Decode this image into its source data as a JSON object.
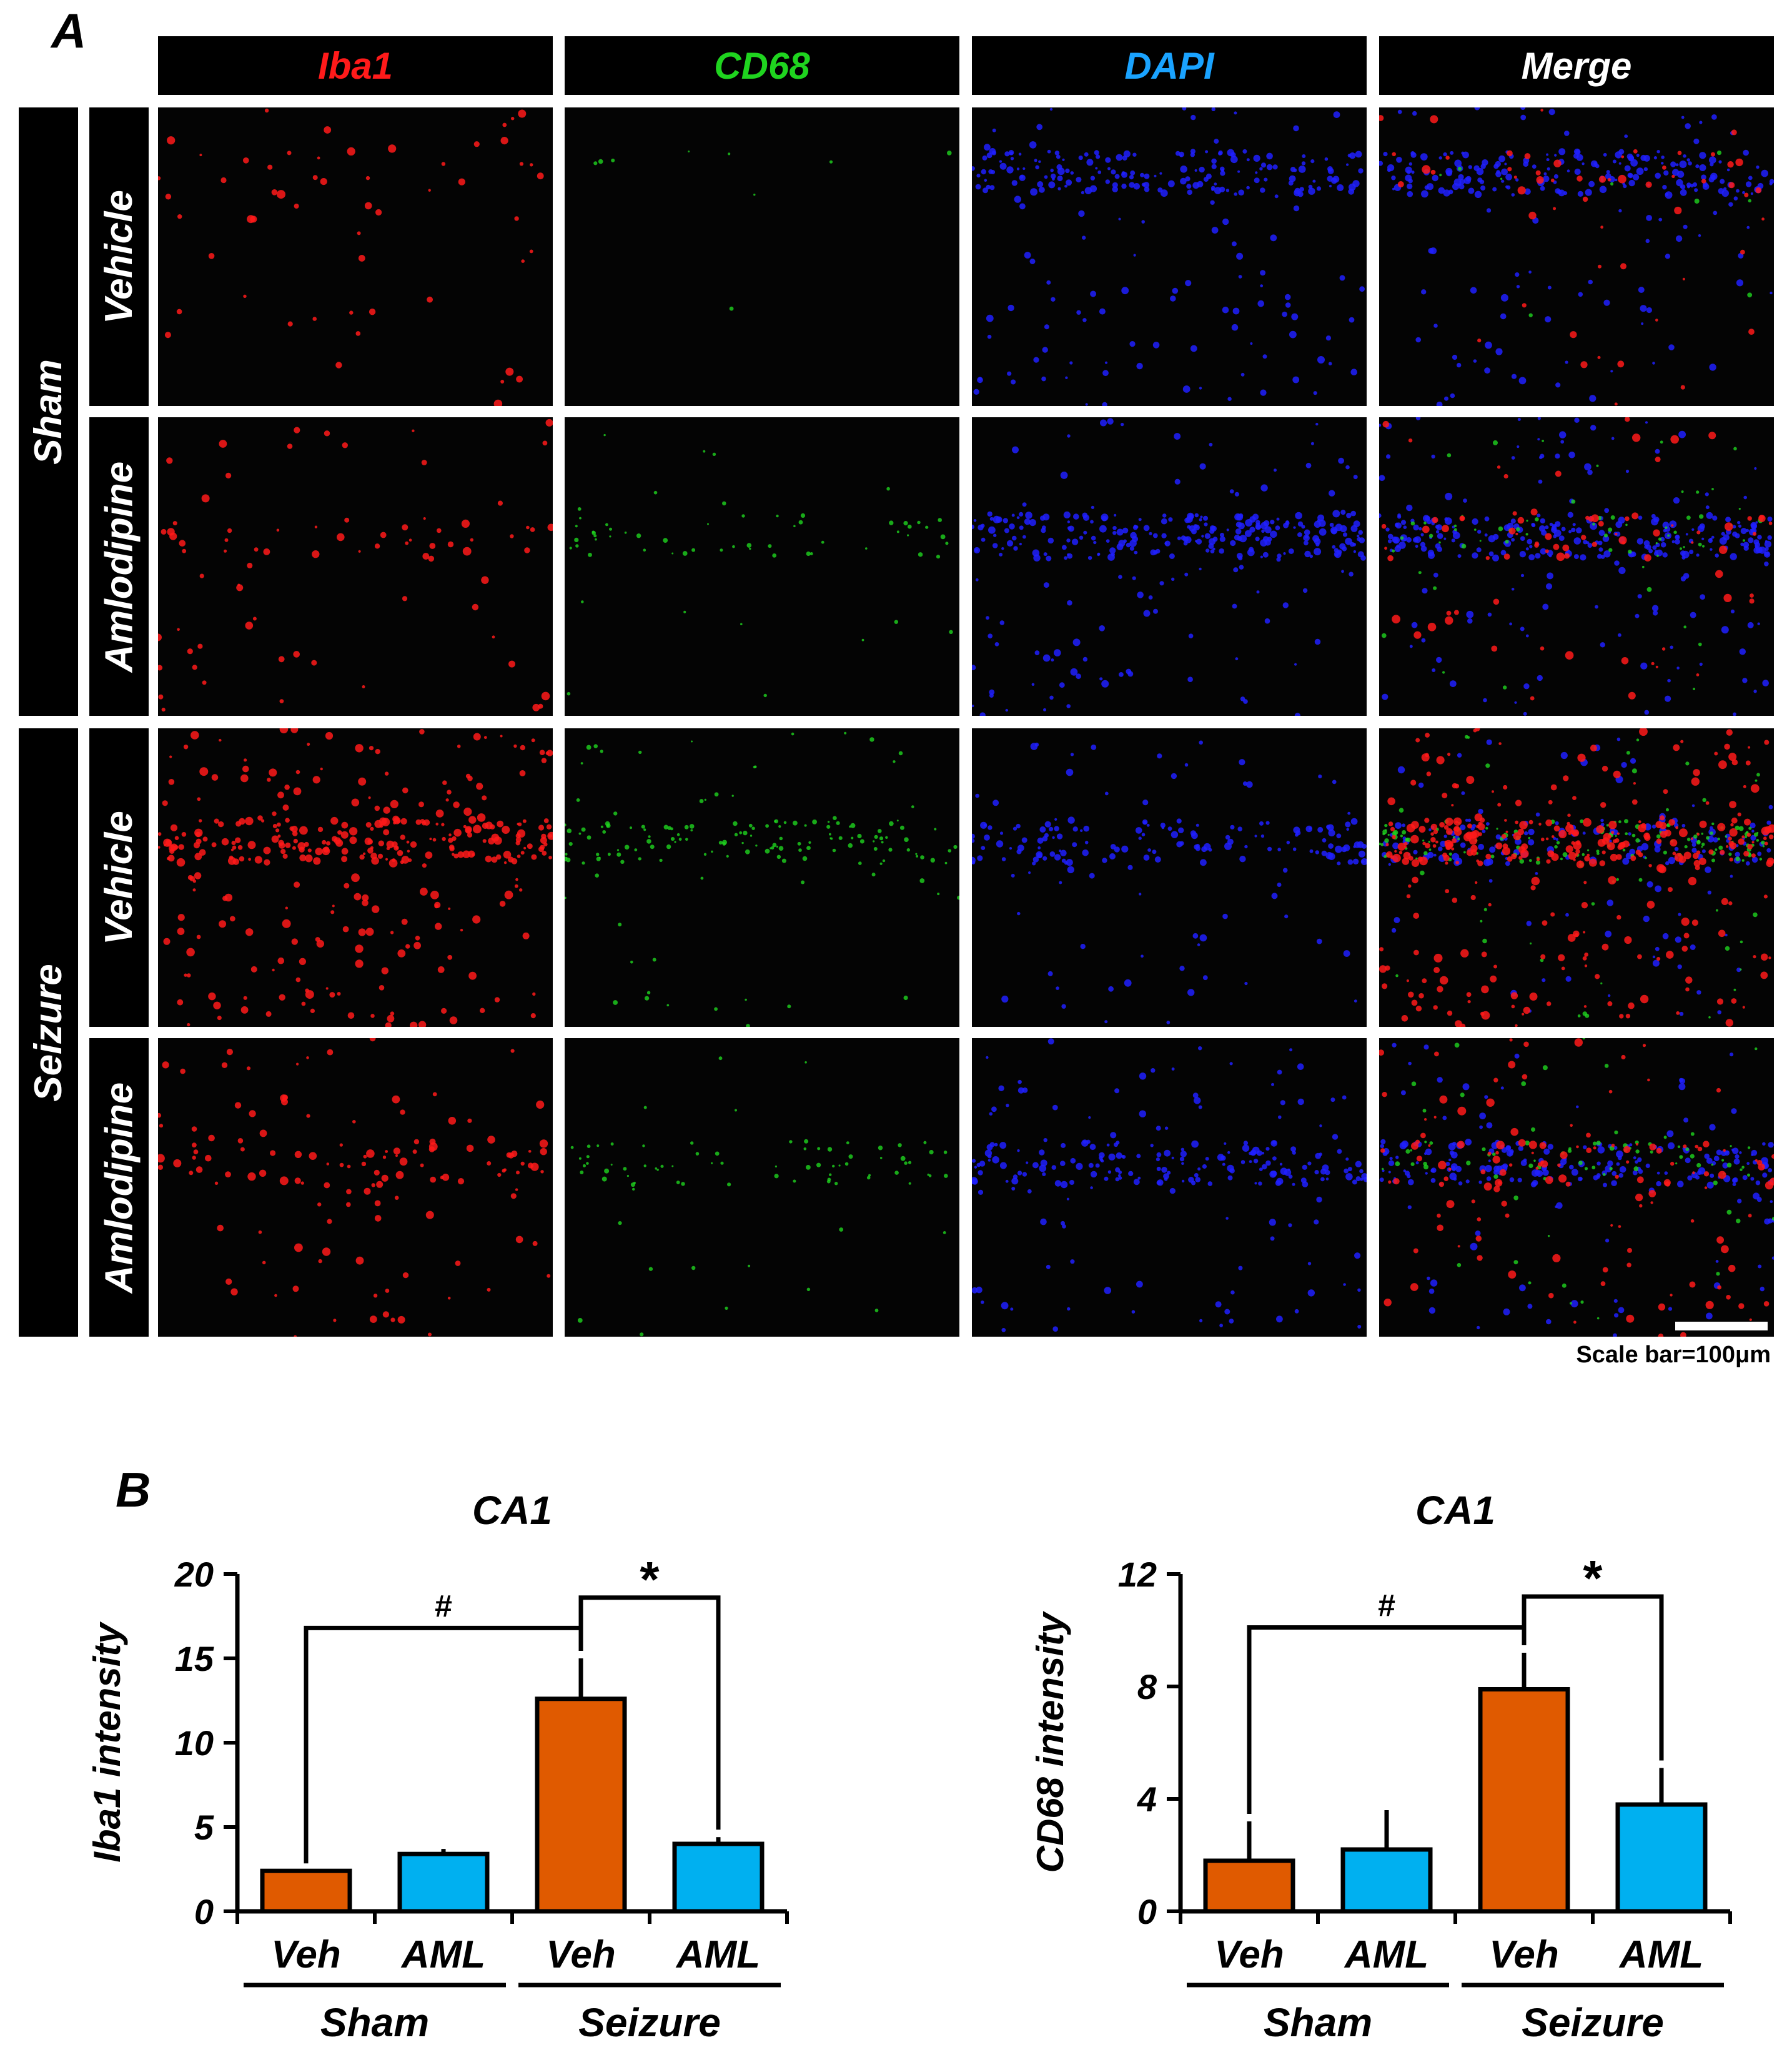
{
  "panel_a": {
    "label": "A",
    "channels": [
      {
        "name": "Iba1",
        "color": "#ff1a1a"
      },
      {
        "name": "CD68",
        "color": "#1fd41f"
      },
      {
        "name": "DAPI",
        "color": "#1aa3ff"
      },
      {
        "name": "Merge",
        "color": "#ffffff"
      }
    ],
    "groups": [
      {
        "name": "Sham",
        "rows": [
          "Vehicle",
          "Amlodipine"
        ]
      },
      {
        "name": "Seizure",
        "rows": [
          "Vehicle",
          "Amlodipine"
        ]
      }
    ],
    "scale_bar": "Scale bar=100μm"
  },
  "panel_b": {
    "label": "B"
  },
  "colors": {
    "veh": "#e05a00",
    "aml": "#00b0f0",
    "iba1": "#ff1a1a",
    "cd68": "#1fd41f",
    "dapi": "#2020ff"
  },
  "chart_data": [
    {
      "type": "bar",
      "title": "CA1",
      "ylabel": "Iba1 intensity",
      "ylim": [
        0,
        20
      ],
      "yticks": [
        0,
        5,
        10,
        15,
        20
      ],
      "categories": [
        "Veh",
        "AML",
        "Veh",
        "AML"
      ],
      "groups": [
        {
          "name": "Sham",
          "span": [
            0,
            1
          ]
        },
        {
          "name": "Seizure",
          "span": [
            2,
            3
          ]
        }
      ],
      "values": [
        2.4,
        3.4,
        12.6,
        4.0
      ],
      "errors": [
        0.0,
        0.3,
        2.4,
        0.4
      ],
      "bar_colors": [
        "veh",
        "aml",
        "veh",
        "aml"
      ],
      "significance": [
        {
          "from": 0,
          "to": 2,
          "label": "#",
          "height": 16.8
        },
        {
          "from": 2,
          "to": 3,
          "label": "*",
          "height": 18.6
        }
      ]
    },
    {
      "type": "bar",
      "title": "CA1",
      "ylabel": "CD68 intensity",
      "ylim": [
        0,
        12
      ],
      "yticks": [
        0,
        4,
        8,
        12
      ],
      "categories": [
        "Veh",
        "AML",
        "Veh",
        "AML"
      ],
      "groups": [
        {
          "name": "Sham",
          "span": [
            0,
            1
          ]
        },
        {
          "name": "Seizure",
          "span": [
            2,
            3
          ]
        }
      ],
      "values": [
        1.8,
        2.2,
        7.9,
        3.8
      ],
      "errors": [
        1.4,
        1.4,
        1.3,
        1.3
      ],
      "bar_colors": [
        "veh",
        "aml",
        "veh",
        "aml"
      ],
      "significance": [
        {
          "from": 0,
          "to": 2,
          "label": "#",
          "height": 10.1
        },
        {
          "from": 2,
          "to": 3,
          "label": "*",
          "height": 11.2
        }
      ]
    }
  ]
}
